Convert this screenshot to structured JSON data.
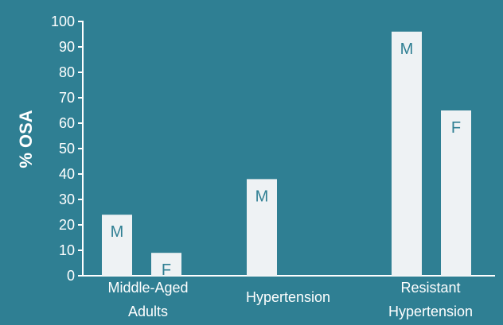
{
  "chart_data": {
    "type": "bar",
    "ylabel": "% OSA",
    "xlabel": "",
    "title": "",
    "ylim": [
      0,
      100
    ],
    "yticks": [
      0,
      10,
      20,
      30,
      40,
      50,
      60,
      70,
      80,
      90,
      100
    ],
    "grid": false,
    "categories": [
      [
        "Middle-Aged",
        "Adults"
      ],
      [
        "Hypertension"
      ],
      [
        "Resistant",
        "Hypertension"
      ]
    ],
    "bars": [
      {
        "category": 0,
        "label": "M",
        "value": 24
      },
      {
        "category": 0,
        "label": "F",
        "value": 9
      },
      {
        "category": 1,
        "label": "M",
        "value": 38
      },
      {
        "category": 2,
        "label": "M",
        "value": 96
      },
      {
        "category": 2,
        "label": "F",
        "value": 65
      }
    ]
  },
  "colors": {
    "background": "#2f7f93",
    "bar": "#eef2f4",
    "axis": "#ffffff",
    "text": "#ffffff",
    "bar_label": "#2f7f93"
  }
}
